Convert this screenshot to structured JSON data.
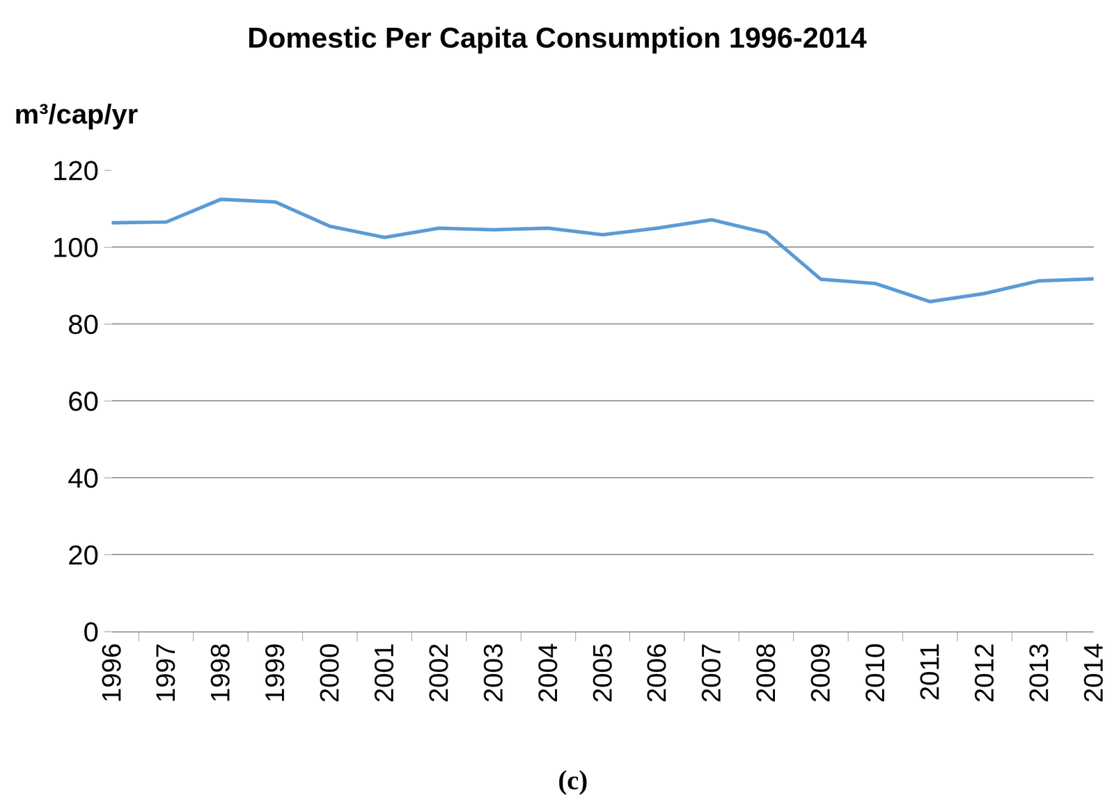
{
  "chart_data": {
    "type": "line",
    "title": "Domestic Per Capita Consumption 1996-2014",
    "y_label": "m³/cap/yr",
    "caption": "(c)",
    "categories": [
      "1996",
      "1997",
      "1998",
      "1999",
      "2000",
      "2001",
      "2002",
      "2003",
      "2004",
      "2005",
      "2006",
      "2007",
      "2008",
      "2009",
      "2010",
      "2011",
      "2012",
      "2013",
      "2014"
    ],
    "values": [
      106.3,
      106.5,
      112.4,
      111.7,
      105.4,
      102.5,
      104.9,
      104.5,
      104.9,
      103.2,
      104.9,
      107.1,
      103.7,
      91.6,
      90.5,
      85.8,
      87.9,
      91.2,
      91.7
    ],
    "color": "#5b9bd5",
    "ylim": [
      0,
      120
    ],
    "yticks": [
      0,
      20,
      40,
      60,
      80,
      100,
      120
    ],
    "grid": true
  }
}
